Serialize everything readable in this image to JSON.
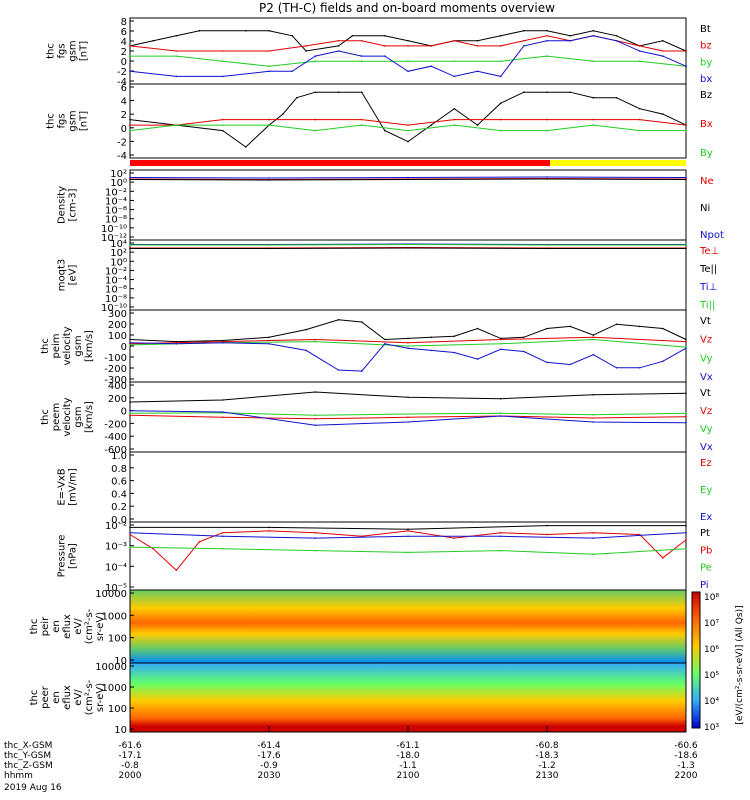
{
  "title": "P2 (TH-C) fields and on-board moments overview",
  "colors": {
    "black": "#000000",
    "red": "#e00000",
    "green": "#22cc22",
    "blue": "#1010d0",
    "bar_red": "#ff0000",
    "bar_yellow": "#ffff00"
  },
  "chart_data": [
    {
      "type": "line",
      "panel": "fgs",
      "ylabel": [
        "thc",
        "fgs",
        "gsm",
        "[nT]"
      ],
      "yticks": [
        "8",
        "6",
        "4",
        "2",
        "0",
        "-2",
        "-4"
      ],
      "ylim": [
        -4.5,
        8.5
      ],
      "series": [
        {
          "name": "Bt",
          "color": "black",
          "x": [
            0,
            5,
            10,
            15,
            25,
            30,
            35,
            38,
            45,
            48,
            55,
            60,
            65,
            70,
            75,
            80,
            85,
            90,
            95,
            100,
            105,
            110,
            115,
            120
          ],
          "values": [
            3,
            4,
            5,
            6,
            6,
            6,
            5,
            2,
            3,
            5,
            5,
            4,
            3,
            4,
            4,
            5,
            6,
            6,
            5,
            6,
            5,
            3,
            4,
            2
          ]
        },
        {
          "name": "bz",
          "color": "red",
          "x": [
            0,
            10,
            20,
            30,
            38,
            45,
            50,
            55,
            60,
            65,
            70,
            75,
            80,
            85,
            90,
            95,
            100,
            105,
            110,
            115,
            120
          ],
          "values": [
            3,
            2,
            2,
            2,
            3,
            4,
            4,
            3,
            3,
            3,
            4,
            3,
            3,
            4,
            5,
            4,
            5,
            4,
            3,
            2,
            2
          ]
        },
        {
          "name": "by",
          "color": "green",
          "x": [
            0,
            10,
            20,
            30,
            40,
            50,
            60,
            70,
            80,
            90,
            100,
            110,
            120
          ],
          "values": [
            1,
            1,
            0,
            -1,
            0,
            0,
            0,
            0,
            0,
            1,
            0,
            0,
            -1
          ]
        },
        {
          "name": "bx",
          "color": "blue",
          "x": [
            0,
            10,
            20,
            30,
            35,
            40,
            45,
            50,
            55,
            60,
            65,
            70,
            75,
            80,
            85,
            90,
            95,
            100,
            105,
            110,
            115,
            120
          ],
          "values": [
            -2,
            -3,
            -3,
            -2,
            -2,
            1,
            2,
            1,
            1,
            -2,
            -1,
            -3,
            -2,
            -3,
            3,
            4,
            4,
            5,
            4,
            2,
            1,
            -1
          ]
        }
      ]
    },
    {
      "type": "line",
      "panel": "fgs-gse",
      "ylabel": [
        "thc",
        "fgs",
        "gsm",
        "[nT]"
      ],
      "yticks": [
        "6",
        "4",
        "2",
        "0",
        "-2",
        "-4"
      ],
      "ylim": [
        -5,
        8.5
      ],
      "series": [
        {
          "name": "Bz",
          "color": "black",
          "x": [
            0,
            10,
            20,
            25,
            30,
            33,
            36,
            40,
            45,
            50,
            55,
            60,
            65,
            70,
            75,
            80,
            85,
            90,
            95,
            100,
            105,
            110,
            115,
            120
          ],
          "values": [
            2,
            1,
            0,
            -3,
            1,
            3,
            6,
            7,
            7,
            7,
            0,
            -2,
            1,
            4,
            1,
            5,
            7,
            7,
            7,
            6,
            6,
            4,
            3,
            1
          ]
        },
        {
          "name": "Bx",
          "color": "red",
          "x": [
            0,
            10,
            20,
            30,
            40,
            50,
            60,
            70,
            80,
            90,
            100,
            110,
            120
          ],
          "values": [
            1,
            1,
            2,
            2,
            2,
            2,
            1,
            2,
            2,
            2,
            2,
            2,
            1
          ]
        },
        {
          "name": "By",
          "color": "green",
          "x": [
            0,
            10,
            20,
            30,
            40,
            50,
            60,
            70,
            80,
            90,
            100,
            110,
            120
          ],
          "values": [
            0,
            1,
            1,
            1,
            0,
            1,
            0,
            1,
            0,
            0,
            1,
            0,
            0
          ]
        }
      ]
    },
    {
      "type": "line",
      "panel": "density",
      "ylabel": [
        "Density",
        "[cm-3]"
      ],
      "yticks": [
        "10²",
        "10⁰",
        "10⁻²",
        "10⁻⁴",
        "10⁻⁶",
        "10⁻⁸",
        "10⁻¹⁰",
        "10⁻¹²"
      ],
      "ylim": [
        -12,
        2
      ],
      "series": [
        {
          "name": "Ne",
          "color": "red",
          "x": [
            0,
            30,
            60,
            90,
            120
          ],
          "values": [
            0.2,
            0.1,
            0.2,
            0.3,
            0.2
          ]
        },
        {
          "name": "Ni",
          "color": "black",
          "x": [
            0,
            30,
            60,
            90,
            120
          ],
          "values": [
            0.1,
            0.0,
            0.1,
            0.2,
            0.1
          ]
        },
        {
          "name": "Npot",
          "color": "blue",
          "x": [
            0,
            30,
            60,
            90,
            120
          ],
          "values": [
            0.5,
            0.4,
            0.5,
            0.6,
            0.5
          ]
        }
      ]
    },
    {
      "type": "line",
      "panel": "temperature",
      "ylabel": [
        "moqt3",
        "[eV]"
      ],
      "yticks": [
        "10⁴",
        "10²",
        "10⁰",
        "10⁻²",
        "10⁻⁴",
        "10⁻⁶",
        "10⁻⁸",
        "10⁻¹⁰"
      ],
      "ylim": [
        -10,
        4
      ],
      "series": [
        {
          "name": "Te⊥",
          "color": "red",
          "x": [
            0,
            30,
            60,
            90,
            120
          ],
          "values": [
            2.4,
            2.4,
            2.5,
            2.4,
            2.4
          ]
        },
        {
          "name": "Te||",
          "color": "black",
          "x": [
            0,
            30,
            60,
            90,
            120
          ],
          "values": [
            2.3,
            2.3,
            2.4,
            2.3,
            2.3
          ]
        },
        {
          "name": "Ti⊥",
          "color": "blue",
          "x": [
            0,
            30,
            60,
            90,
            120
          ],
          "values": [
            3.1,
            3.1,
            3.2,
            3.1,
            3.1
          ]
        },
        {
          "name": "Ti||",
          "color": "green",
          "x": [
            0,
            30,
            60,
            90,
            120
          ],
          "values": [
            3.0,
            3.0,
            3.1,
            3.0,
            3.0
          ]
        }
      ]
    },
    {
      "type": "line",
      "panel": "peim-velocity",
      "ylabel": [
        "thc",
        "peim",
        "velocity",
        "gsm",
        "[km/s]"
      ],
      "yticks": [
        "300",
        "200",
        "100",
        "0",
        "-100",
        "-200",
        "-300"
      ],
      "ylim": [
        -330,
        330
      ],
      "series": [
        {
          "name": "Vt",
          "color": "black",
          "x": [
            0,
            10,
            20,
            30,
            38,
            45,
            50,
            55,
            60,
            65,
            70,
            75,
            80,
            85,
            90,
            95,
            100,
            105,
            110,
            115,
            120
          ],
          "values": [
            60,
            40,
            50,
            80,
            150,
            240,
            220,
            60,
            70,
            80,
            90,
            160,
            70,
            80,
            160,
            180,
            100,
            200,
            180,
            160,
            60
          ]
        },
        {
          "name": "Vz",
          "color": "red",
          "x": [
            0,
            20,
            40,
            60,
            80,
            100,
            120
          ],
          "values": [
            20,
            40,
            60,
            30,
            60,
            80,
            40
          ]
        },
        {
          "name": "Vy",
          "color": "green",
          "x": [
            0,
            20,
            40,
            60,
            80,
            100,
            120
          ],
          "values": [
            10,
            30,
            40,
            0,
            20,
            60,
            -10
          ]
        },
        {
          "name": "Vx",
          "color": "blue",
          "x": [
            0,
            10,
            20,
            30,
            38,
            45,
            50,
            55,
            60,
            65,
            70,
            75,
            80,
            85,
            90,
            95,
            100,
            105,
            110,
            115,
            120
          ],
          "values": [
            30,
            20,
            30,
            20,
            -40,
            -220,
            -230,
            20,
            -20,
            -40,
            -60,
            -120,
            -30,
            -50,
            -150,
            -170,
            -80,
            -200,
            -200,
            -140,
            -20
          ]
        }
      ]
    },
    {
      "type": "line",
      "panel": "peem-velocity",
      "ylabel": [
        "thc",
        "peem",
        "velocity",
        "gsm",
        "[km/s]"
      ],
      "yticks": [
        "400",
        "200",
        "0",
        "-200",
        "-400",
        "-600"
      ],
      "ylim": [
        -600,
        450
      ],
      "series": [
        {
          "name": "Vt",
          "color": "black",
          "x": [
            0,
            20,
            40,
            60,
            80,
            100,
            120
          ],
          "values": [
            150,
            180,
            300,
            220,
            200,
            260,
            280
          ]
        },
        {
          "name": "Vz",
          "color": "red",
          "x": [
            0,
            20,
            40,
            60,
            80,
            100,
            120
          ],
          "values": [
            -50,
            -80,
            -100,
            -80,
            -60,
            -90,
            -70
          ]
        },
        {
          "name": "Vy",
          "color": "green",
          "x": [
            0,
            20,
            40,
            60,
            80,
            100,
            120
          ],
          "values": [
            -20,
            -10,
            -50,
            -30,
            -20,
            -40,
            -20
          ]
        },
        {
          "name": "Vx",
          "color": "blue",
          "x": [
            0,
            20,
            40,
            60,
            80,
            100,
            120
          ],
          "values": [
            20,
            0,
            -200,
            -150,
            -60,
            -150,
            -160
          ]
        }
      ]
    },
    {
      "type": "line",
      "panel": "efield",
      "ylabel": [
        "E=-VxB",
        "[mV/m]"
      ],
      "yticks": [
        "1.0",
        "0.8",
        "0.6",
        "0.4",
        "0.2",
        "0.0"
      ],
      "ylim": [
        0,
        1
      ],
      "series": [
        {
          "name": "Ez",
          "color": "red",
          "x": [],
          "values": []
        },
        {
          "name": "Ey",
          "color": "green",
          "x": [],
          "values": []
        },
        {
          "name": "Ex",
          "color": "blue",
          "x": [],
          "values": []
        }
      ]
    },
    {
      "type": "line",
      "panel": "pressure",
      "ylabel": [
        "Pressure",
        "[nPa]"
      ],
      "yticks": [
        "10⁻²",
        "10⁻³",
        "10⁻⁴",
        "10⁻⁵"
      ],
      "ylim": [
        -5.3,
        -1.5
      ],
      "series": [
        {
          "name": "Pt",
          "color": "black",
          "x": [
            0,
            30,
            60,
            90,
            120
          ],
          "values": [
            -1.8,
            -1.8,
            -1.9,
            -1.7,
            -1.7
          ]
        },
        {
          "name": "Pb",
          "color": "red",
          "x": [
            0,
            5,
            10,
            15,
            20,
            30,
            40,
            50,
            60,
            70,
            80,
            90,
            100,
            110,
            115,
            120
          ],
          "values": [
            -2.2,
            -3.0,
            -4.2,
            -2.6,
            -2.1,
            -2.0,
            -2.1,
            -2.3,
            -2.0,
            -2.4,
            -2.1,
            -2.2,
            -2.1,
            -2.2,
            -3.5,
            -2.5
          ]
        },
        {
          "name": "Pe",
          "color": "green",
          "x": [
            0,
            20,
            40,
            60,
            80,
            100,
            120
          ],
          "values": [
            -2.9,
            -3.0,
            -3.1,
            -3.2,
            -3.1,
            -3.3,
            -3.0
          ]
        },
        {
          "name": "Pi",
          "color": "blue",
          "x": [
            0,
            20,
            40,
            60,
            80,
            100,
            120
          ],
          "values": [
            -2.1,
            -2.3,
            -2.4,
            -2.3,
            -2.3,
            -2.4,
            -2.1
          ]
        }
      ]
    },
    {
      "type": "heatmap",
      "panel": "peir-eflux",
      "ylabel": [
        "thc",
        "peir",
        "en",
        "eflux",
        "eV/",
        "(cm²-s-",
        "sr-eV)"
      ],
      "yticks": [
        "10000",
        "1000",
        "100",
        "10"
      ]
    },
    {
      "type": "heatmap",
      "panel": "peer-eflux",
      "ylabel": [
        "thc",
        "peer",
        "en",
        "eflux",
        "eV/",
        "(cm²-s-",
        "sr-eV)"
      ],
      "yticks": [
        "10000",
        "1000",
        "100",
        "10"
      ]
    }
  ],
  "colorbar": {
    "ticks": [
      "10⁸",
      "10⁷",
      "10⁶",
      "10⁵",
      "10⁴",
      "10³"
    ],
    "label": "[eV/(cm²-s-sr-eV)] (All Qs)]"
  },
  "xaxis": {
    "rows": [
      {
        "label": "thc_X-GSM",
        "values": [
          "-61.6",
          "-61.4",
          "-61.1",
          "-60.8",
          "-60.6"
        ]
      },
      {
        "label": "thc_Y-GSM",
        "values": [
          "-17.1",
          "-17.6",
          "-18.0",
          "-18.3",
          "-18.6"
        ]
      },
      {
        "label": "thc_Z-GSM",
        "values": [
          "-0.8",
          "-0.9",
          "-1.1",
          "-1.2",
          "-1.3"
        ]
      },
      {
        "label": "hhmm",
        "values": [
          "2000",
          "2030",
          "2100",
          "2130",
          "2200"
        ]
      }
    ],
    "date": "2019 Aug 16"
  }
}
